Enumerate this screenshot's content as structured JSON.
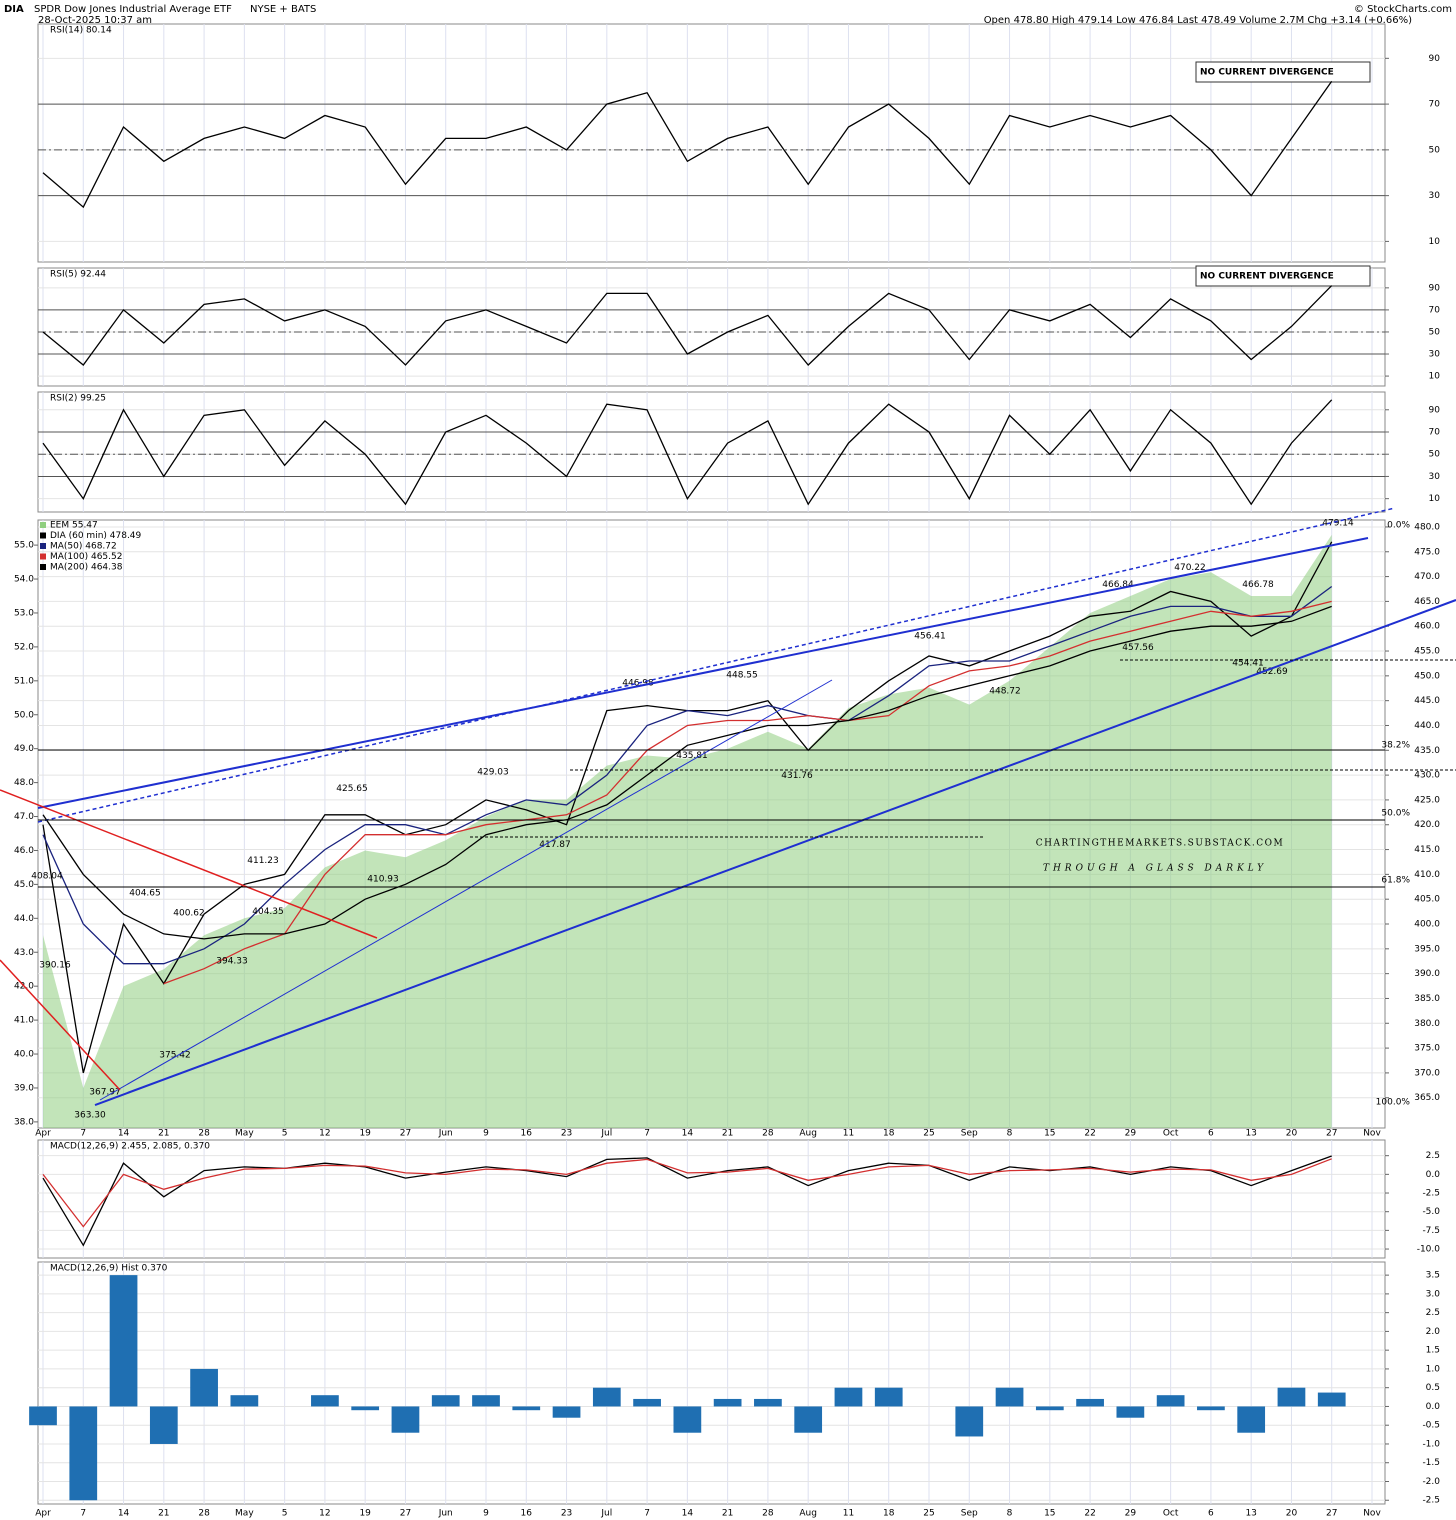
{
  "header": {
    "symbol": "DIA",
    "name": "SPDR Dow Jones Industrial Average ETF",
    "exchange": "NYSE + BATS",
    "date": "28-Oct-2025 10:37 am",
    "quote": "Open 478.80  High 479.14  Low 476.84  Last 478.49  Volume 2.7M  Chg +3.14 (+0.66%)",
    "credit": "© StockCharts.com"
  },
  "watermark": {
    "line1": "CHARTINGTHEMARKETS.SUBSTACK.COM",
    "line2": "THROUGH A GLASS DARKLY"
  },
  "chart_data": [
    {
      "type": "line",
      "title": "RSI(14) 80.14",
      "annotation": "NO CURRENT DIVERGENCE",
      "ylim": [
        1,
        105
      ],
      "yticks": [
        10,
        30,
        50,
        70,
        90
      ],
      "levels": [
        70,
        50,
        30
      ],
      "series": [
        {
          "color": "#000000",
          "values": [
            40,
            25,
            60,
            45,
            55,
            60,
            55,
            65,
            60,
            35,
            55,
            55,
            60,
            50,
            70,
            75,
            45,
            55,
            60,
            35,
            60,
            70,
            55,
            35,
            65,
            60,
            65,
            60,
            65,
            50,
            30,
            55,
            80,
            null
          ]
        }
      ]
    },
    {
      "type": "line",
      "title": "RSI(5) 92.44",
      "annotation": "NO CURRENT DIVERGENCE",
      "ylim": [
        1,
        108
      ],
      "yticks": [
        10,
        30,
        50,
        70,
        90
      ],
      "levels": [
        70,
        50,
        30
      ],
      "series": [
        {
          "color": "#000000",
          "values": [
            50,
            20,
            70,
            40,
            75,
            80,
            60,
            70,
            55,
            20,
            60,
            70,
            55,
            40,
            85,
            85,
            30,
            50,
            65,
            20,
            55,
            85,
            70,
            25,
            70,
            60,
            75,
            45,
            80,
            60,
            25,
            55,
            92,
            null
          ]
        }
      ]
    },
    {
      "type": "line",
      "title": "RSI(2) 99.25",
      "ylim": [
        -2,
        106
      ],
      "yticks": [
        10,
        30,
        50,
        70,
        90
      ],
      "levels": [
        70,
        50,
        30
      ],
      "series": [
        {
          "color": "#000000",
          "values": [
            60,
            10,
            90,
            30,
            85,
            90,
            40,
            80,
            50,
            5,
            70,
            85,
            60,
            30,
            95,
            90,
            10,
            60,
            80,
            5,
            60,
            95,
            70,
            10,
            85,
            50,
            90,
            35,
            90,
            60,
            5,
            60,
            99,
            null
          ]
        }
      ]
    },
    {
      "type": "line",
      "categories": [
        "Apr",
        "7",
        "14",
        "21",
        "28",
        "May",
        "5",
        "12",
        "19",
        "27",
        "Jun",
        "9",
        "16",
        "23",
        "Jul",
        "7",
        "14",
        "21",
        "28",
        "Aug",
        "11",
        "18",
        "25",
        "Sep",
        "8",
        "15",
        "22",
        "29",
        "Oct",
        "6",
        "13",
        "20",
        "27",
        "Nov"
      ],
      "ylim": [
        358.9,
        481.4
      ],
      "y2lim": [
        37.82,
        55.74
      ],
      "yticks": [
        {
          "value": 365,
          "label": "365.0"
        },
        {
          "value": 370,
          "label": "370.0"
        },
        {
          "value": 375,
          "label": "375.0"
        },
        {
          "value": 380,
          "label": "380.0"
        },
        {
          "value": 385,
          "label": "385.0"
        },
        {
          "value": 390,
          "label": "390.0"
        },
        {
          "value": 395,
          "label": "395.0"
        },
        {
          "value": 400,
          "label": "400.0"
        },
        {
          "value": 405,
          "label": "405.0"
        },
        {
          "value": 410,
          "label": "410.0"
        },
        {
          "value": 415,
          "label": "415.0"
        },
        {
          "value": 420,
          "label": "420.0"
        },
        {
          "value": 425,
          "label": "425.0"
        },
        {
          "value": 430,
          "label": "430.0"
        },
        {
          "value": 435,
          "label": "435.0"
        },
        {
          "value": 440,
          "label": "440.0"
        },
        {
          "value": 445,
          "label": "445.0"
        },
        {
          "value": 450,
          "label": "450.0"
        },
        {
          "value": 455,
          "label": "455.0"
        },
        {
          "value": 460,
          "label": "460.0"
        },
        {
          "value": 465,
          "label": "465.0"
        },
        {
          "value": 470,
          "label": "470.0"
        },
        {
          "value": 475,
          "label": "475.0"
        },
        {
          "value": 480,
          "label": "480.0"
        }
      ],
      "y2ticks": [
        {
          "value": 38,
          "label": "38.0"
        },
        {
          "value": 39,
          "label": "39.0"
        },
        {
          "value": 40,
          "label": "40.0"
        },
        {
          "value": 41,
          "label": "41.0"
        },
        {
          "value": 42,
          "label": "42.0"
        },
        {
          "value": 43,
          "label": "43.0"
        },
        {
          "value": 44,
          "label": "44.0"
        },
        {
          "value": 45,
          "label": "45.0"
        },
        {
          "value": 46,
          "label": "46.0"
        },
        {
          "value": 47,
          "label": "47.0"
        },
        {
          "value": 48,
          "label": "48.0"
        },
        {
          "value": 49,
          "label": "49.0"
        },
        {
          "value": 50,
          "label": "50.0"
        },
        {
          "value": 51,
          "label": "51.0"
        },
        {
          "value": 52,
          "label": "52.0"
        },
        {
          "value": 53,
          "label": "53.0"
        },
        {
          "value": 54,
          "label": "54.0"
        },
        {
          "value": 55,
          "label": "55.0"
        }
      ],
      "series": [
        {
          "name": "EEM 55.47",
          "color": "#8fce7f",
          "axis": "y2",
          "area": true,
          "values": [
            43.5,
            39,
            42,
            42.5,
            43.5,
            44,
            44.3,
            45.5,
            46,
            45.8,
            46.3,
            47,
            47.5,
            47.5,
            48.5,
            48.8,
            48.7,
            49,
            49.5,
            49,
            50.2,
            50.6,
            50.8,
            50.3,
            51,
            52,
            53,
            53.5,
            54,
            54.2,
            53.5,
            53.5,
            55.3,
            null
          ]
        },
        {
          "name": "DIA (60 min) 478.49",
          "color": "#000000",
          "values": [
            420,
            370,
            400,
            388,
            402,
            408,
            410,
            422,
            422,
            418,
            420,
            425,
            423,
            420,
            443,
            444,
            443,
            443,
            445,
            435,
            443,
            449,
            454,
            452,
            455,
            458,
            462,
            463,
            467,
            465,
            458,
            462,
            477,
            null
          ]
        },
        {
          "name": "MA(50) 468.72",
          "color": "#1a237e",
          "values": [
            418,
            400,
            392,
            392,
            395,
            400,
            408,
            415,
            420,
            420,
            418,
            422,
            425,
            424,
            430,
            440,
            443,
            442,
            444,
            442,
            441,
            446,
            452,
            453,
            453,
            456,
            459,
            462,
            464,
            464,
            462,
            462,
            468,
            null
          ]
        },
        {
          "name": "MA(100) 465.52",
          "color": "#d32f2f",
          "values": [
            null,
            null,
            null,
            388,
            391,
            395,
            398,
            410,
            418,
            418,
            418,
            420,
            421,
            422,
            426,
            435,
            440,
            441,
            441,
            442,
            441,
            442,
            448,
            451,
            452,
            454,
            457,
            459,
            461,
            463,
            462,
            463,
            465,
            null
          ]
        },
        {
          "name": "MA(200) 464.38",
          "color": "#000000",
          "values": [
            422,
            410,
            402,
            398,
            397,
            398,
            398,
            400,
            405,
            408,
            412,
            418,
            420,
            421,
            424,
            430,
            436,
            438,
            440,
            440,
            441,
            443,
            446,
            448,
            450,
            452,
            455,
            457,
            459,
            460,
            460,
            461,
            464,
            null
          ]
        }
      ],
      "price_labels": [
        479.14,
        470.22,
        466.84,
        466.78,
        457.56,
        454.41,
        452.69,
        456.41,
        448.72,
        446.98,
        448.55,
        435.81,
        431.76,
        429.03,
        417.87,
        425.65,
        410.93,
        411.23,
        404.35,
        404.65,
        400.62,
        394.33,
        375.42,
        367.97,
        {
          "value": 363.3,
          "label": "363.30"
        },
        390.16,
        408.04
      ],
      "fib_labels": [
        "0.0%",
        "38.2%",
        "50.0%",
        "61.8%",
        "100.0%"
      ]
    },
    {
      "type": "line",
      "title": "MACD(12,26,9) 2.455, 2.085, 0.370",
      "ylim": [
        -11.2,
        4.6
      ],
      "yticks": [
        2.5,
        {
          "value": 0,
          "label": "0.0"
        },
        -2.5,
        {
          "value": -5,
          "label": "-5.0"
        },
        -7.5,
        {
          "value": -10,
          "label": "-10.0"
        }
      ],
      "series": [
        {
          "color": "#000000",
          "values": [
            -0.5,
            -9.5,
            1.5,
            -3,
            0.5,
            1,
            0.8,
            1.5,
            1,
            -0.5,
            0.3,
            1,
            0.5,
            -0.3,
            2,
            2.2,
            -0.5,
            0.5,
            1,
            -1.5,
            0.5,
            1.5,
            1.2,
            -0.8,
            1,
            0.5,
            1,
            0,
            1,
            0.5,
            -1.5,
            0.5,
            2.455,
            null
          ]
        },
        {
          "color": "#d32f2f",
          "values": [
            0,
            -7,
            0,
            -2,
            -0.5,
            0.7,
            0.8,
            1.2,
            1.1,
            0.2,
            0,
            0.7,
            0.6,
            0,
            1.5,
            2,
            0.2,
            0.3,
            0.8,
            -0.8,
            0,
            1,
            1.2,
            0,
            0.5,
            0.6,
            0.8,
            0.3,
            0.7,
            0.6,
            -0.8,
            0,
            2.085,
            null
          ]
        }
      ]
    },
    {
      "type": "bar",
      "title": "MACD(12,26,9) Hist 0.370",
      "ylim": [
        -2.6,
        3.85
      ],
      "color": "#1f6fb2",
      "categories": [
        "Apr",
        "7",
        "14",
        "21",
        "28",
        "May",
        "5",
        "12",
        "19",
        "27",
        "Jun",
        "9",
        "16",
        "23",
        "Jul",
        "7",
        "14",
        "21",
        "28",
        "Aug",
        "11",
        "18",
        "25",
        "Sep",
        "8",
        "15",
        "22",
        "29",
        "Oct",
        "6",
        "13",
        "20",
        "27",
        "Nov"
      ],
      "yticks": [
        3.5,
        {
          "value": 3,
          "label": "3.0"
        },
        2.5,
        {
          "value": 2,
          "label": "2.0"
        },
        1.5,
        {
          "value": 1,
          "label": "1.0"
        },
        0.5,
        {
          "value": 0,
          "label": "0.0"
        },
        -0.5,
        {
          "value": -1,
          "label": "-1.0"
        },
        -1.5,
        {
          "value": -2,
          "label": "-2.0"
        },
        -2.5
      ],
      "values": [
        -0.5,
        -2.5,
        3.5,
        -1,
        1,
        0.3,
        0,
        0.3,
        -0.1,
        -0.7,
        0.3,
        0.3,
        -0.1,
        -0.3,
        0.5,
        0.2,
        -0.7,
        0.2,
        0.2,
        -0.7,
        0.5,
        0.5,
        0,
        -0.8,
        0.5,
        -0.1,
        0.2,
        -0.3,
        0.3,
        -0.1,
        -0.7,
        0.5,
        0.37,
        null
      ]
    }
  ]
}
